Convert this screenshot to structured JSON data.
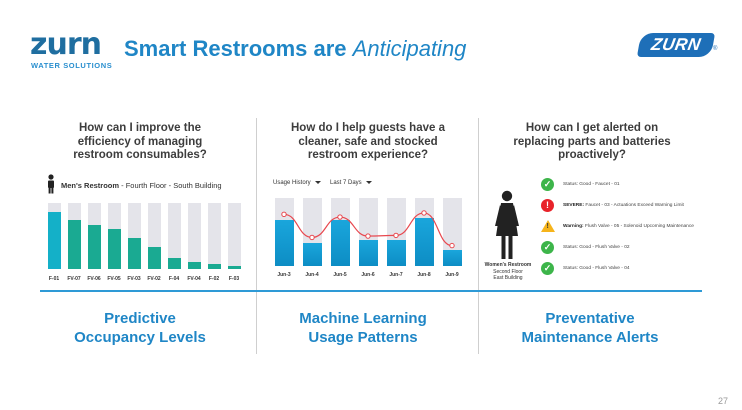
{
  "header": {
    "logo_text": "zurn",
    "logo_subtext": "WATER SOLUTIONS",
    "title_main": "Smart Restrooms are",
    "title_italic": "Anticipating",
    "badge_text": "ZURN",
    "badge_reg": "®"
  },
  "columns": [
    {
      "question": "How can I improve the efficiency of managing restroom consumables?",
      "footer": [
        "Predictive",
        "Occupancy Levels"
      ]
    },
    {
      "question": "How do I help guests have a cleaner, safe and stocked restroom experience?",
      "footer": [
        "Machine Learning",
        "Usage Patterns"
      ]
    },
    {
      "question": "How can I get alerted on replacing parts and batteries proactively?",
      "footer": [
        "Preventative",
        "Maintenance Alerts"
      ]
    }
  ],
  "occupancy": {
    "room_bold": "Men's Restroom",
    "room_rest": " - Fourth Floor - South Building",
    "colors": {
      "first": "#14b0c8",
      "rest": "#1aaa92",
      "bg": "#e4e4ea"
    },
    "bars": [
      {
        "label": "F-01",
        "level": 0.86
      },
      {
        "label": "FV-07",
        "level": 0.74
      },
      {
        "label": "FV-06",
        "level": 0.66
      },
      {
        "label": "FV-05",
        "level": 0.6
      },
      {
        "label": "FV-03",
        "level": 0.47
      },
      {
        "label": "FV-02",
        "level": 0.34
      },
      {
        "label": "F-04",
        "level": 0.17
      },
      {
        "label": "FV-04",
        "level": 0.11
      },
      {
        "label": "F-02",
        "level": 0.08
      },
      {
        "label": "F-03",
        "level": 0.04
      }
    ]
  },
  "usage": {
    "dropdown_history": "Usage History",
    "dropdown_range": "Last 7 Days",
    "colors": {
      "bar": "#1aa6dc",
      "bg": "#e4e4ea",
      "line": "#e8484f"
    },
    "bars": [
      {
        "label": "Jun-3",
        "level": 0.68,
        "line": 0.76
      },
      {
        "label": "Jun-4",
        "level": 0.34,
        "line": 0.42
      },
      {
        "label": "Jun-5",
        "level": 0.67,
        "line": 0.72
      },
      {
        "label": "Jun-6",
        "level": 0.38,
        "line": 0.44
      },
      {
        "label": "Jun-7",
        "level": 0.38,
        "line": 0.45
      },
      {
        "label": "Jun-8",
        "level": 0.7,
        "line": 0.78
      },
      {
        "label": "Jun-9",
        "level": 0.24,
        "line": 0.3
      }
    ]
  },
  "alerts": {
    "womens_label": [
      "Women's Restroom",
      "Second Floor",
      "East Building"
    ],
    "items": [
      {
        "icon": "check-icon",
        "status": "ok",
        "bold": "",
        "text": "Status: Good - Faucet - 01"
      },
      {
        "icon": "exclamation-icon",
        "status": "severe",
        "bold": "SEVERE:",
        "text": " Faucet - 03 - Actuations Exceed Warning Limit"
      },
      {
        "icon": "warning-icon",
        "status": "warning",
        "bold": "Warning:",
        "text": " Flush Valve - 05 - Solenoid Upcoming Maintenance"
      },
      {
        "icon": "check-icon",
        "status": "ok",
        "bold": "",
        "text": "Status: Good - Flush Valve - 02"
      },
      {
        "icon": "check-icon",
        "status": "ok",
        "bold": "",
        "text": "Status: Good - Flush Valve - 04"
      }
    ]
  },
  "page_number": "27"
}
